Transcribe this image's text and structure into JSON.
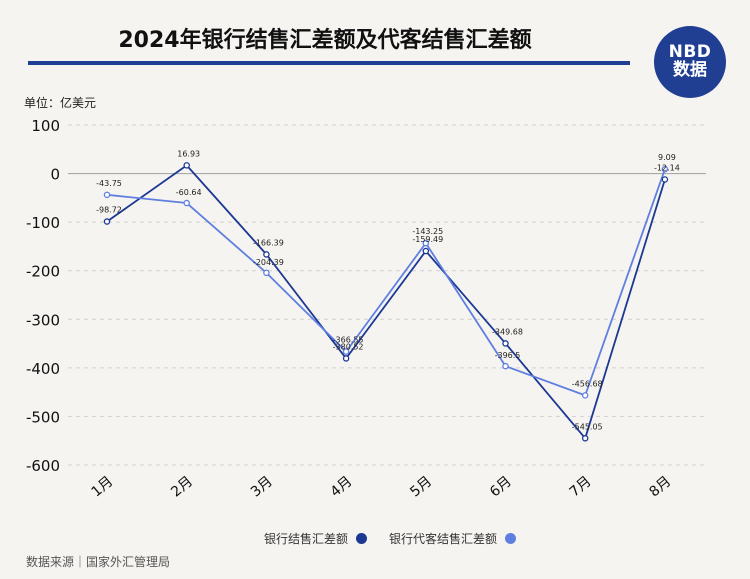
{
  "header": {
    "title": "2024年银行结售汇差额及代客结售汇差额",
    "logo_line1": "NBD",
    "logo_line2": "数据"
  },
  "unit_label": "单位：亿美元",
  "source_label": "数据来源｜国家外汇管理局",
  "colors": {
    "series1": "#1b3892",
    "series2": "#5f7fe0",
    "title_rule": "#1f3f95"
  },
  "chart_data": {
    "type": "line",
    "categories": [
      "1月",
      "2月",
      "3月",
      "4月",
      "5月",
      "6月",
      "7月",
      "8月"
    ],
    "series": [
      {
        "name": "银行结售汇差额",
        "values": [
          -98.72,
          16.93,
          -166.39,
          -380.52,
          -159.49,
          -349.68,
          -545.05,
          -12.14
        ],
        "labels": [
          "-98.72",
          "16.93",
          "-166.39",
          "-380.52",
          "-159.49",
          "-349.68",
          "-545.05",
          "-12.14"
        ]
      },
      {
        "name": "银行代客结售汇差额",
        "values": [
          -43.75,
          -60.64,
          -204.39,
          -366.55,
          -143.25,
          -396.5,
          -456.68,
          9.09
        ],
        "labels": [
          "-43.75",
          "-60.64",
          "-204.39",
          "-366.55",
          "-143.25",
          "-396.5",
          "-456.68",
          "9.09"
        ]
      }
    ],
    "yticks": [
      "100",
      "0",
      "-100",
      "-200",
      "-300",
      "-400",
      "-500",
      "-600"
    ],
    "ylim": [
      -600,
      100
    ],
    "grid": true,
    "legend_position": "bottom"
  }
}
